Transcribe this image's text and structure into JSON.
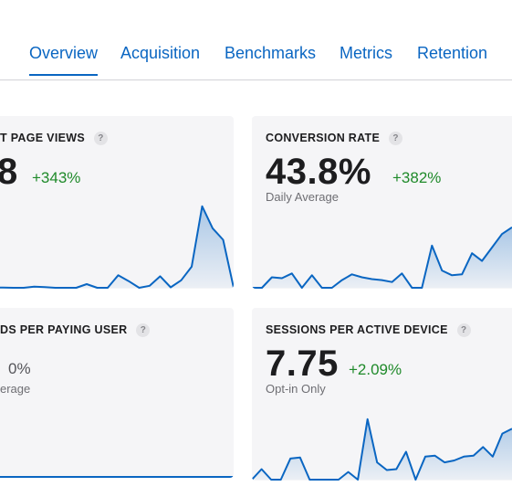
{
  "tabs": [
    {
      "label": "Overview",
      "active": true
    },
    {
      "label": "Acquisition",
      "active": false
    },
    {
      "label": "Benchmarks",
      "active": false
    },
    {
      "label": "Metrics",
      "active": false
    },
    {
      "label": "Retention",
      "active": false
    }
  ],
  "help_glyph": "?",
  "cards": {
    "page_views": {
      "title": "T PAGE VIEWS",
      "value": "8",
      "delta": "+343%",
      "trend": [
        0,
        0,
        0.3,
        0,
        0,
        1.2,
        0.8,
        0,
        0,
        0,
        3.8,
        0,
        0,
        13,
        7,
        0,
        2.1,
        12,
        0.5,
        7.8,
        22,
        85,
        62,
        50,
        0
      ]
    },
    "conversion_rate": {
      "title": "CONVERSION RATE",
      "value": "43.8%",
      "delta": "+382%",
      "caption": "Daily Average",
      "trend": [
        0,
        0,
        11,
        10,
        15,
        0,
        13,
        0,
        0,
        8,
        14,
        11,
        9,
        8,
        6,
        15,
        0,
        0,
        44,
        18,
        13,
        14,
        36,
        28,
        42,
        56,
        63
      ]
    },
    "paying_user": {
      "title": "DS PER PAYING USER",
      "value": "0%",
      "caption": "erage",
      "trend": [
        0,
        0,
        0,
        0,
        0,
        0,
        0,
        0,
        0,
        0,
        0,
        0,
        0
      ]
    },
    "active_device": {
      "title": "SESSIONS PER ACTIVE DEVICE",
      "value": "7.75",
      "delta": "+2.09%",
      "caption": "Opt-in Only",
      "trend": [
        0,
        11,
        0,
        0,
        22,
        23,
        0,
        0,
        0,
        0,
        8,
        0,
        63,
        18,
        10,
        11,
        29,
        0,
        24,
        25,
        18,
        20,
        24,
        25,
        34,
        24,
        48,
        53
      ]
    }
  },
  "colors": {
    "accent": "#0a66c2",
    "positive": "#1f8a2a",
    "card_bg": "#f5f5f7"
  }
}
